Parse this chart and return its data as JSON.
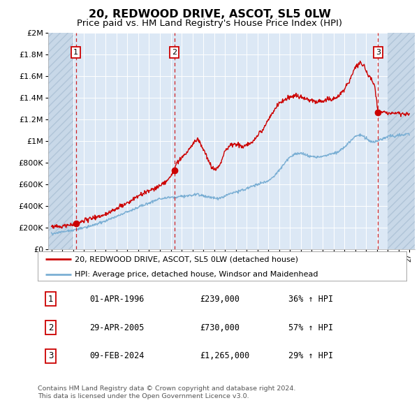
{
  "title": "20, REDWOOD DRIVE, ASCOT, SL5 0LW",
  "subtitle": "Price paid vs. HM Land Registry's House Price Index (HPI)",
  "title_fontsize": 11.5,
  "subtitle_fontsize": 9.5,
  "ylim": [
    0,
    2000000
  ],
  "yticks": [
    0,
    200000,
    400000,
    600000,
    800000,
    1000000,
    1200000,
    1400000,
    1600000,
    1800000,
    2000000
  ],
  "ytick_labels": [
    "£0",
    "£200K",
    "£400K",
    "£600K",
    "£800K",
    "£1M",
    "£1.2M",
    "£1.4M",
    "£1.6M",
    "£1.8M",
    "£2M"
  ],
  "xlim_start": 1993.7,
  "xlim_end": 2027.5,
  "hpi_color": "#7bafd4",
  "price_color": "#cc0000",
  "bg_color": "#dce8f5",
  "grid_color": "#ffffff",
  "dashed_line_color": "#cc0000",
  "hatch_bg_color": "#c8d8e8",
  "transactions": [
    {
      "year": 1996.25,
      "price": 239000,
      "label": "1"
    },
    {
      "year": 2005.33,
      "price": 730000,
      "label": "2"
    },
    {
      "year": 2024.1,
      "price": 1265000,
      "label": "3"
    }
  ],
  "transaction_table": [
    {
      "num": "1",
      "date": "01-APR-1996",
      "price": "£239,000",
      "hpi": "36% ↑ HPI"
    },
    {
      "num": "2",
      "date": "29-APR-2005",
      "price": "£730,000",
      "hpi": "57% ↑ HPI"
    },
    {
      "num": "3",
      "date": "09-FEB-2024",
      "price": "£1,265,000",
      "hpi": "29% ↑ HPI"
    }
  ],
  "legend_entries": [
    "20, REDWOOD DRIVE, ASCOT, SL5 0LW (detached house)",
    "HPI: Average price, detached house, Windsor and Maidenhead"
  ],
  "footer": "Contains HM Land Registry data © Crown copyright and database right 2024.\nThis data is licensed under the Open Government Licence v3.0.",
  "hatch_left_end": 1996.0,
  "hatch_right_start": 2025.0
}
